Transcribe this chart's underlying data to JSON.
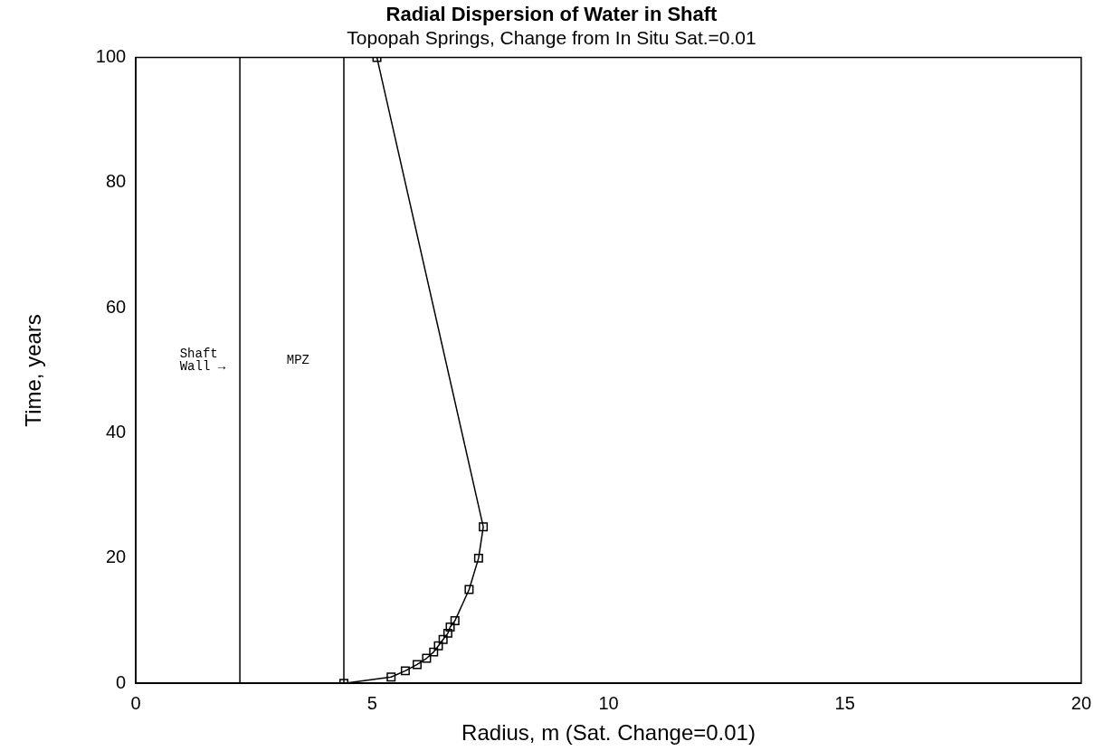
{
  "chart_data": {
    "type": "line",
    "title": "Radial Dispersion of Water in Shaft",
    "subtitle": "Topopah Springs, Change from In Situ Sat.=0.01",
    "xlabel": "Radius, m (Sat. Change=0.01)",
    "ylabel": "Time, years",
    "series": [
      {
        "color": "#000000",
        "x": [
          4.4,
          5.4,
          5.7,
          5.95,
          6.15,
          6.3,
          6.4,
          6.5,
          6.6,
          6.65,
          6.75,
          7.05,
          7.25,
          7.35,
          5.1
        ],
        "values": [
          0,
          1,
          2,
          3,
          4,
          5,
          6,
          7,
          8,
          9,
          10,
          15,
          20,
          25,
          100
        ]
      }
    ],
    "xlim": [
      0,
      20
    ],
    "xticks": [
      0,
      5,
      10,
      15,
      20
    ],
    "ylim": [
      0,
      100
    ],
    "yticks": [
      0,
      20,
      40,
      60,
      80,
      100
    ],
    "ref_lines": [
      {
        "axis": "x",
        "value": 2.2,
        "label": "Shaft Wall →"
      },
      {
        "axis": "x",
        "value": 4.4,
        "label": "MPZ"
      }
    ],
    "grid": false,
    "legend": false,
    "marker": "square",
    "line_style": "solid"
  }
}
